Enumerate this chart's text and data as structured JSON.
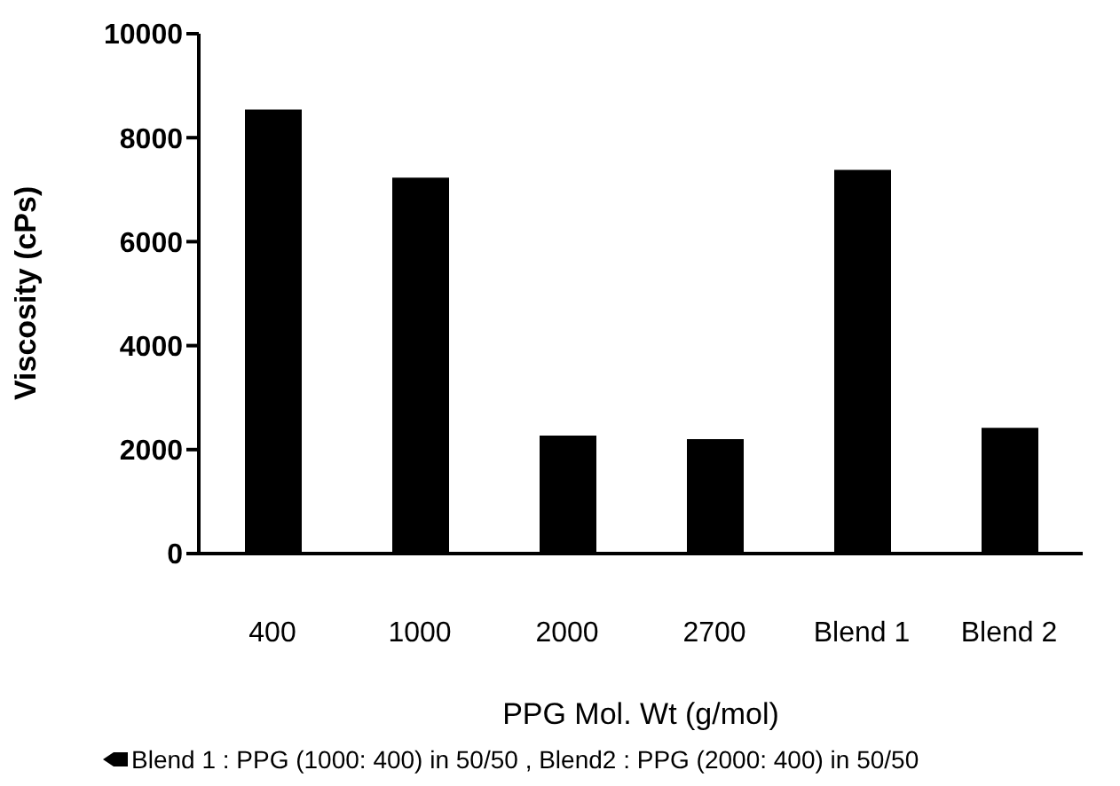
{
  "chart_data": {
    "type": "bar",
    "categories": [
      "400",
      "1000",
      "2000",
      "2700",
      "Blend 1",
      "Blend 2"
    ],
    "values": [
      8540,
      7230,
      2270,
      2200,
      7380,
      2420
    ],
    "color": "#000000",
    "xlabel": "PPG Mol. Wt (g/mol)",
    "ylabel": "Viscosity (cPs)",
    "ylim": [
      0,
      10000
    ],
    "yticks": [
      0,
      2000,
      4000,
      6000,
      8000,
      10000
    ],
    "grid": false,
    "legend": false,
    "annotations": [
      "Blend 1 : PPG (1000: 400)  in 50/50 , Blend2 : PPG (2000: 400) in 50/50"
    ]
  }
}
